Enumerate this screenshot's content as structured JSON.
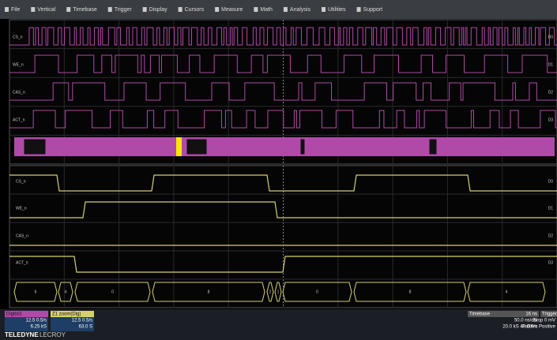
{
  "menu": [
    "File",
    "Vertical",
    "Timebase",
    "Trigger",
    "Display",
    "Cursors",
    "Measure",
    "Math",
    "Analysis",
    "Utilities",
    "Support"
  ],
  "overview": {
    "signals": [
      "CS_n",
      "WE_n",
      "CAS_n",
      "ACT_n"
    ],
    "channels": [
      "D0",
      "D1",
      "D2",
      "D3"
    ]
  },
  "zoom": {
    "signals": [
      "CS_n",
      "WE_n",
      "CAS_n",
      "ACT_n"
    ],
    "channels": [
      "D0",
      "D1",
      "D2",
      "D3"
    ],
    "bus_values": [
      "6",
      "4",
      "0",
      "8",
      "2",
      "1",
      "0",
      "8",
      "4"
    ]
  },
  "info": {
    "digital": {
      "title": "Digital1",
      "rows": [
        "12.5 0.5/s",
        "6.25 kS"
      ]
    },
    "zoom": {
      "title": "Z1 zoom(Dig)",
      "rows": [
        "12.5 0.5/s",
        "63.0 S"
      ]
    },
    "timebase": {
      "title": "Timebase",
      "value": "16 ns",
      "rows": [
        "50.0 ns/div",
        "20.0 kS  40 GS/s"
      ]
    },
    "trigger": {
      "title": "Trigger",
      "rows": [
        "Stop  0 mV",
        "Pattern  Positive"
      ]
    }
  },
  "brand": {
    "name": "TELEDYNE",
    "sub": "LECROY"
  }
}
